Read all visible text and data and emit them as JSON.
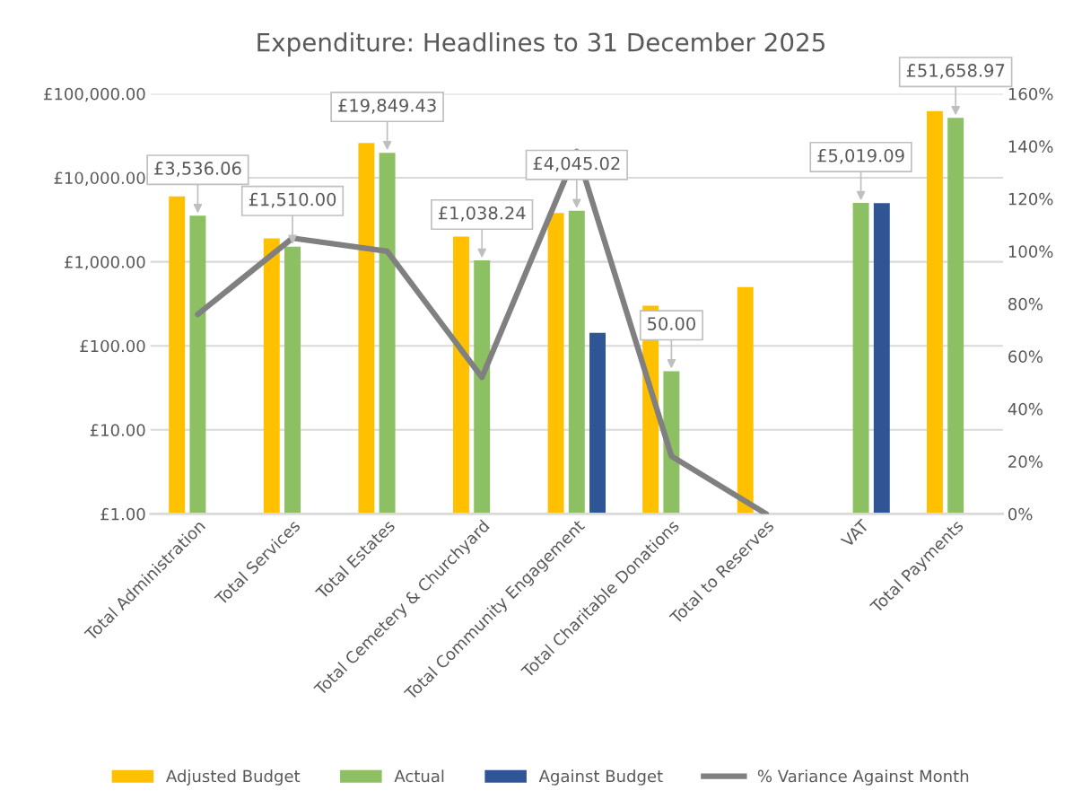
{
  "chart_data": {
    "type": "bar",
    "title": "Expenditure: Headlines to 31 December 2025",
    "categories": [
      "Total Administration",
      "Total Services",
      "Total Estates",
      "Total Cemetery & Churchyard",
      "Total Community Engagement",
      "Total Charitable Donations",
      "Total to Reserves",
      "VAT",
      "Total Payments"
    ],
    "series": [
      {
        "name": "Adjusted Budget",
        "color": "#ffc000",
        "values": [
          6000,
          1900,
          26000,
          2000,
          3800,
          300,
          500,
          null,
          62000
        ]
      },
      {
        "name": "Actual",
        "color": "#8dc063",
        "values": [
          3536.06,
          1510.0,
          19849.43,
          1038.24,
          4045.02,
          50.0,
          null,
          5019.09,
          51658.97
        ],
        "value_labels": [
          "£3,536.06",
          "£1,510.00",
          "£19,849.43",
          "£1,038.24",
          "£4,045.02",
          "50.00",
          null,
          "£5,019.09",
          "£51,658.97"
        ]
      },
      {
        "name": "Against Budget",
        "color": "#2f5597",
        "values": [
          null,
          null,
          null,
          null,
          143,
          null,
          null,
          5000,
          null
        ]
      },
      {
        "name": "% Variance Against Month",
        "type": "line",
        "axis": "y2",
        "color": "#808080",
        "values": [
          76,
          105,
          100,
          52,
          138,
          22,
          0,
          null,
          null
        ]
      }
    ],
    "log": "y",
    "ylim": [
      1,
      100000
    ],
    "yticks": [
      {
        "value": 1,
        "label": "£1.00"
      },
      {
        "value": 10,
        "label": "£10.00"
      },
      {
        "value": 100,
        "label": "£100.00"
      },
      {
        "value": 1000,
        "label": "£1,000.00"
      },
      {
        "value": 10000,
        "label": "£10,000.00"
      },
      {
        "value": 100000,
        "label": "£100,000.00"
      }
    ],
    "y2lim": [
      0,
      160
    ],
    "y2ticks": [
      {
        "value": 0,
        "label": "0%"
      },
      {
        "value": 20,
        "label": "20%"
      },
      {
        "value": 40,
        "label": "40%"
      },
      {
        "value": 60,
        "label": "60%"
      },
      {
        "value": 80,
        "label": "80%"
      },
      {
        "value": 100,
        "label": "100%"
      },
      {
        "value": 120,
        "label": "120%"
      },
      {
        "value": 140,
        "label": "140%"
      },
      {
        "value": 160,
        "label": "160%"
      }
    ],
    "grid": "y",
    "legend": "bottom",
    "marker": "none",
    "line_style": "solid"
  }
}
